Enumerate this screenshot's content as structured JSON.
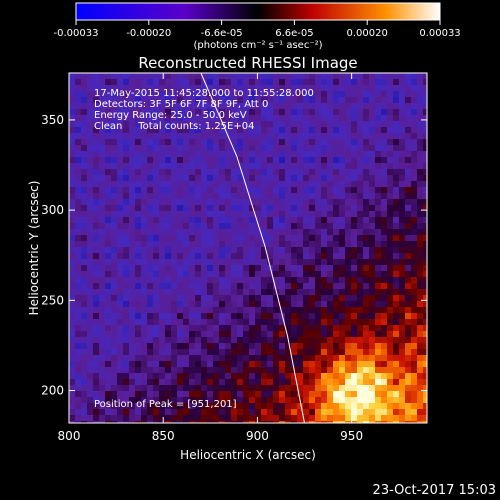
{
  "colorbar": {
    "ticks": [
      "-0.00033",
      "-0.00020",
      "-6.6e-05",
      "6.6e-05",
      "0.00020",
      "0.00033"
    ],
    "unit_label": "(photons cm⁻² s⁻¹ asec⁻²)",
    "range": [
      -0.00033,
      0.00033
    ]
  },
  "chart_data": {
    "type": "heatmap",
    "title": "Reconstructed RHESSI Image",
    "xlabel": "Heliocentric X (arcsec)",
    "ylabel": "Heliocentric Y (arcsec)",
    "xlim": [
      800,
      990
    ],
    "ylim": [
      182,
      376
    ],
    "x_ticks": [
      800,
      850,
      900,
      950
    ],
    "y_ticks": [
      200,
      250,
      300,
      350
    ],
    "info_lines": [
      "17-May-2015 11:45:28.000 to 11:55:28.000",
      "Detectors: 3F 5F 6F 7F 8F 9F, Att 0",
      "Energy Range: 25.0 - 50.0 keV",
      "Clean     Total counts: 1.25E+04"
    ],
    "peak_label": "Position of Peak = [951,201]",
    "peak": [
      951,
      201
    ],
    "limb_points": [
      [
        870,
        376
      ],
      [
        889,
        330
      ],
      [
        904,
        280
      ],
      [
        916,
        230
      ],
      [
        925,
        182
      ]
    ]
  },
  "footer": {
    "timestamp": "23-Oct-2017 15:03"
  }
}
